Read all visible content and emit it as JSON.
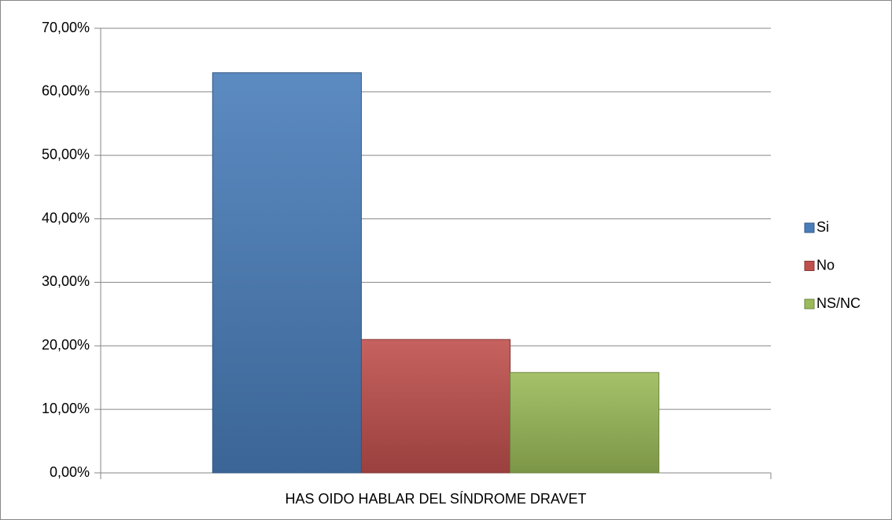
{
  "chart_data": {
    "type": "bar",
    "categories": [
      "HAS OIDO HABLAR DEL SÍNDROME DRAVET"
    ],
    "series": [
      {
        "name": "Si",
        "color": "#4a7ebb",
        "values": [
          63
        ]
      },
      {
        "name": "No",
        "color": "#c0504d",
        "values": [
          21
        ]
      },
      {
        "name": "NS/NC",
        "color": "#9bbb59",
        "values": [
          15.8
        ]
      }
    ],
    "ylim": [
      0,
      70
    ],
    "yticks": [
      {
        "value": 0,
        "label": "0,00%"
      },
      {
        "value": 10,
        "label": "10,00%"
      },
      {
        "value": 20,
        "label": "20,00%"
      },
      {
        "value": 30,
        "label": "30,00%"
      },
      {
        "value": 40,
        "label": "40,00%"
      },
      {
        "value": 50,
        "label": "50,00%"
      },
      {
        "value": 60,
        "label": "60,00%"
      },
      {
        "value": 70,
        "label": "70,00%"
      }
    ],
    "grid": true,
    "legend": "right"
  }
}
